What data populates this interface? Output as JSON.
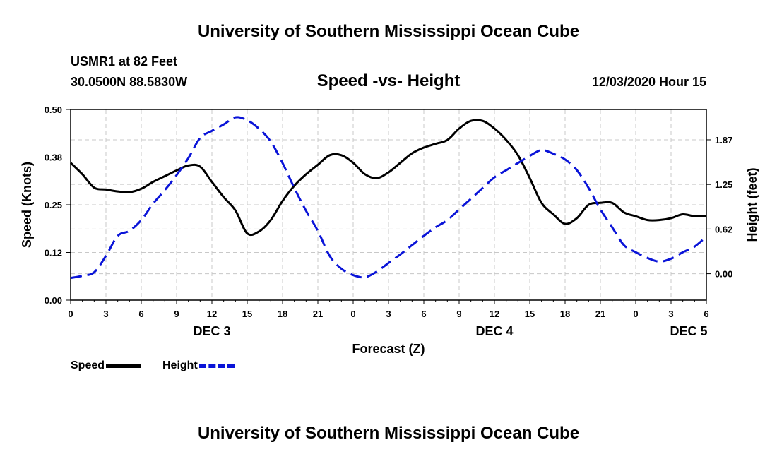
{
  "page": {
    "title": "University of Southern Mississippi Ocean Cube",
    "footer_title": "University of Southern Mississippi Ocean Cube",
    "station": "USMR1 at 82 Feet",
    "coords": "30.0500N 88.5830W",
    "chart_title": "Speed -vs- Height",
    "datetime": "12/03/2020 Hour 15"
  },
  "legend": {
    "speed": "Speed",
    "height": "Height"
  },
  "colors": {
    "speed": "#000000",
    "height": "#0a14d8",
    "grid": "#c8c8c8"
  },
  "chart_data": {
    "type": "line",
    "title": "Speed -vs- Height",
    "xlabel": "Forecast (Z)",
    "ylabel": "Speed (Knots)",
    "y2label": "Height (feet)",
    "xlim": [
      0,
      54
    ],
    "ylim": [
      0,
      0.5
    ],
    "y2lim": [
      -0.37,
      2.3
    ],
    "x_ticks": [
      0,
      3,
      6,
      9,
      12,
      15,
      18,
      21,
      24,
      27,
      30,
      33,
      36,
      39,
      42,
      45,
      48,
      51,
      54
    ],
    "x_tick_labels": [
      "0",
      "3",
      "6",
      "9",
      "12",
      "15",
      "18",
      "21",
      "0",
      "3",
      "6",
      "9",
      "12",
      "15",
      "18",
      "21",
      "0",
      "3",
      "6"
    ],
    "y_ticks": [
      0,
      0.125,
      0.25,
      0.375,
      0.5
    ],
    "y_tick_labels": [
      "0.00",
      "0.12",
      "0.25",
      "0.38",
      "0.50"
    ],
    "y2_ticks": [
      0,
      0.625,
      1.25,
      1.875
    ],
    "y2_tick_labels": [
      "0.00",
      "0.62",
      "1.25",
      "1.87"
    ],
    "day_labels": [
      {
        "x": 12,
        "label": "DEC 3"
      },
      {
        "x": 36,
        "label": "DEC 4"
      },
      {
        "x": 52.5,
        "label": "DEC 5"
      }
    ],
    "series": [
      {
        "name": "Speed",
        "axis": "left",
        "style": "solid",
        "x": [
          0,
          1,
          2,
          3,
          4,
          5,
          6,
          7,
          8,
          9,
          10,
          11,
          12,
          13,
          14,
          15,
          16,
          17,
          18,
          19,
          20,
          21,
          22,
          23,
          24,
          25,
          26,
          27,
          28,
          29,
          30,
          31,
          32,
          33,
          34,
          35,
          36,
          37,
          38,
          39,
          40,
          41,
          42,
          43,
          44,
          45,
          46,
          47,
          48,
          49,
          50,
          51,
          52,
          53,
          54
        ],
        "values": [
          0.36,
          0.33,
          0.295,
          0.29,
          0.285,
          0.283,
          0.292,
          0.31,
          0.325,
          0.34,
          0.353,
          0.35,
          0.31,
          0.27,
          0.235,
          0.175,
          0.18,
          0.21,
          0.26,
          0.3,
          0.33,
          0.355,
          0.38,
          0.38,
          0.36,
          0.33,
          0.32,
          0.335,
          0.36,
          0.385,
          0.4,
          0.41,
          0.42,
          0.45,
          0.47,
          0.47,
          0.45,
          0.42,
          0.38,
          0.32,
          0.255,
          0.225,
          0.2,
          0.215,
          0.25,
          0.255,
          0.255,
          0.23,
          0.22,
          0.21,
          0.21,
          0.215,
          0.225,
          0.22,
          0.22
        ]
      },
      {
        "name": "Height",
        "axis": "right",
        "style": "dashed",
        "x": [
          0,
          1,
          2,
          3,
          4,
          5,
          6,
          7,
          8,
          9,
          10,
          11,
          12,
          13,
          14,
          15,
          16,
          17,
          18,
          19,
          20,
          21,
          22,
          23,
          24,
          25,
          26,
          27,
          28,
          29,
          30,
          31,
          32,
          33,
          34,
          35,
          36,
          37,
          38,
          39,
          40,
          41,
          42,
          43,
          44,
          45,
          46,
          47,
          48,
          49,
          50,
          51,
          52,
          53,
          54
        ],
        "values": [
          -0.06,
          -0.03,
          0.02,
          0.25,
          0.53,
          0.6,
          0.75,
          0.98,
          1.17,
          1.38,
          1.62,
          1.9,
          2.0,
          2.09,
          2.19,
          2.15,
          2.03,
          1.85,
          1.55,
          1.2,
          0.88,
          0.6,
          0.25,
          0.07,
          -0.02,
          -0.05,
          0.03,
          0.15,
          0.27,
          0.4,
          0.53,
          0.65,
          0.75,
          0.9,
          1.05,
          1.2,
          1.35,
          1.45,
          1.55,
          1.65,
          1.73,
          1.68,
          1.6,
          1.45,
          1.2,
          0.9,
          0.65,
          0.4,
          0.3,
          0.22,
          0.17,
          0.21,
          0.3,
          0.38,
          0.52
        ]
      }
    ]
  }
}
